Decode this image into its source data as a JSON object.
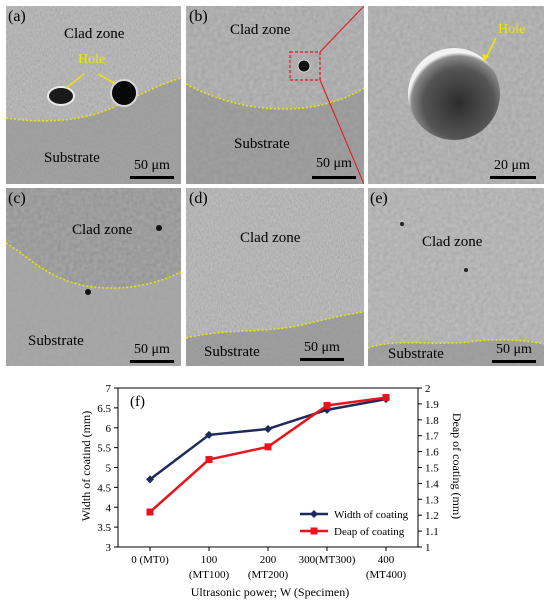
{
  "panels": {
    "a": {
      "label": "(a)",
      "top_zone": "Clad zone",
      "bottom_zone": "Substrate",
      "hole_label": "Hole",
      "scale": "50 μm"
    },
    "b": {
      "label": "(b)",
      "top_zone": "Clad zone",
      "bottom_zone": "Substrate",
      "scale": "50 μm"
    },
    "b_zoom": {
      "hole_label": "Hole",
      "scale": "20 μm"
    },
    "c": {
      "label": "(c)",
      "top_zone": "Clad zone",
      "bottom_zone": "Substrate",
      "scale": "50 μm"
    },
    "d": {
      "label": "(d)",
      "top_zone": "Clad zone",
      "bottom_zone": "Substrate",
      "scale": "50 μm"
    },
    "e": {
      "label": "(e)",
      "top_zone": "Clad zone",
      "bottom_zone": "Substrate",
      "scale": "50 μm"
    }
  },
  "colors": {
    "boundary": "#f2e600",
    "width_series": "#1f2a5c",
    "depth_series": "#e8141b",
    "zoom_frame": "#e0141b"
  },
  "chart_data": {
    "type": "line",
    "panel_label": "(f)",
    "categories": [
      "0 (MT0)",
      "100 (MT100)",
      "200 (MT200)",
      "300(MT300)",
      "400 (MT400)"
    ],
    "category_lines": [
      [
        "0 (MT0)"
      ],
      [
        "100",
        "(MT100)"
      ],
      [
        "200",
        "(MT200)"
      ],
      [
        "300(MT300)"
      ],
      [
        "400",
        "(MT400)"
      ]
    ],
    "x": [
      0,
      100,
      200,
      300,
      400
    ],
    "xlabel": "Ultrasonic power; W (Specimen)",
    "ylabel": "Width of coatind (mm)",
    "y2label": "Deap of coating (mm)",
    "ylim": [
      3,
      7
    ],
    "yticks": [
      "3",
      "3.5",
      "4",
      "4.5",
      "5",
      "5.5",
      "6",
      "6.5",
      "7"
    ],
    "y2lim": [
      1,
      2
    ],
    "y2ticks": [
      "1",
      "1.1",
      "1.2",
      "1.3",
      "1.4",
      "1.5",
      "1.6",
      "1.7",
      "1.8",
      "1.9",
      "2"
    ],
    "series": [
      {
        "name": "Width of coating",
        "axis": "left",
        "values": [
          4.7,
          5.82,
          5.97,
          6.45,
          6.72
        ]
      },
      {
        "name": "Deap of coating",
        "axis": "right",
        "values": [
          1.22,
          1.55,
          1.63,
          1.89,
          1.94
        ]
      }
    ],
    "legend": "bottom-right",
    "grid": false
  }
}
